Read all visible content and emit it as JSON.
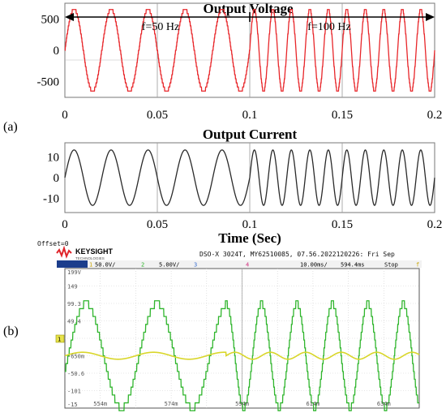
{
  "panel_labels": {
    "a": "(a)",
    "b": "(b)"
  },
  "chart_data": [
    {
      "type": "line",
      "title": "Output Voltage",
      "x_range": [
        0,
        0.2
      ],
      "ylim": [
        -750,
        750
      ],
      "x_ticks": [
        "0",
        "0.05",
        "0.1",
        "0.15",
        "0.2"
      ],
      "y_ticks": [
        "500",
        "0",
        "-500"
      ],
      "annotations": [
        "f=50 Hz",
        "f=100 Hz"
      ],
      "waveform": "staircase sine",
      "amplitude": 650,
      "segments": [
        {
          "x_start": 0,
          "x_end": 0.1,
          "frequency": 50
        },
        {
          "x_start": 0.1,
          "x_end": 0.2,
          "frequency": 100
        }
      ],
      "color": "#e8262a"
    },
    {
      "type": "line",
      "title": "Output Current",
      "xlabel": "Time (Sec)",
      "x_range": [
        0,
        0.2
      ],
      "ylim": [
        -17,
        17
      ],
      "x_ticks": [
        "0",
        "0.05",
        "0.1",
        "0.15",
        "0.2"
      ],
      "y_ticks": [
        "10",
        "0",
        "-10"
      ],
      "waveform": "sine",
      "amplitude": 13.5,
      "segments": [
        {
          "x_start": 0,
          "x_end": 0.1,
          "frequency": 50
        },
        {
          "x_start": 0.1,
          "x_end": 0.2,
          "frequency": 100
        }
      ],
      "color": "#2a2a2a"
    },
    {
      "type": "line",
      "scope": {
        "offset_label": "Offset=0",
        "brand": "KEYSIGHT",
        "brand_sub": "TECHNOLOGIES",
        "info": "DSO-X 3024T, MY62510085, 07.56.2022120226: Fri Sep",
        "ch1": "50.0V/",
        "ch2": "5.00V/",
        "ch3_num": "3",
        "ch4_num": "4",
        "timebase": "10.00ms/",
        "delay": "594.4ms",
        "mode": "Stop",
        "y_ticks": [
          "199V",
          "149",
          "99.3",
          "49.4",
          "-650m",
          "-50.6",
          "-101",
          "-15"
        ],
        "x_ticks": [
          "554m",
          "574m",
          "594m",
          "614m",
          "634m"
        ],
        "marker": "1"
      },
      "series": [
        {
          "name": "",
          "waveform": "staircase sine",
          "amplitude_divs": 3.0,
          "color": "#2fb52c"
        },
        {
          "name": "",
          "waveform": "sine",
          "amplitude_divs": 0.2,
          "color": "#d9d62a"
        }
      ]
    }
  ]
}
